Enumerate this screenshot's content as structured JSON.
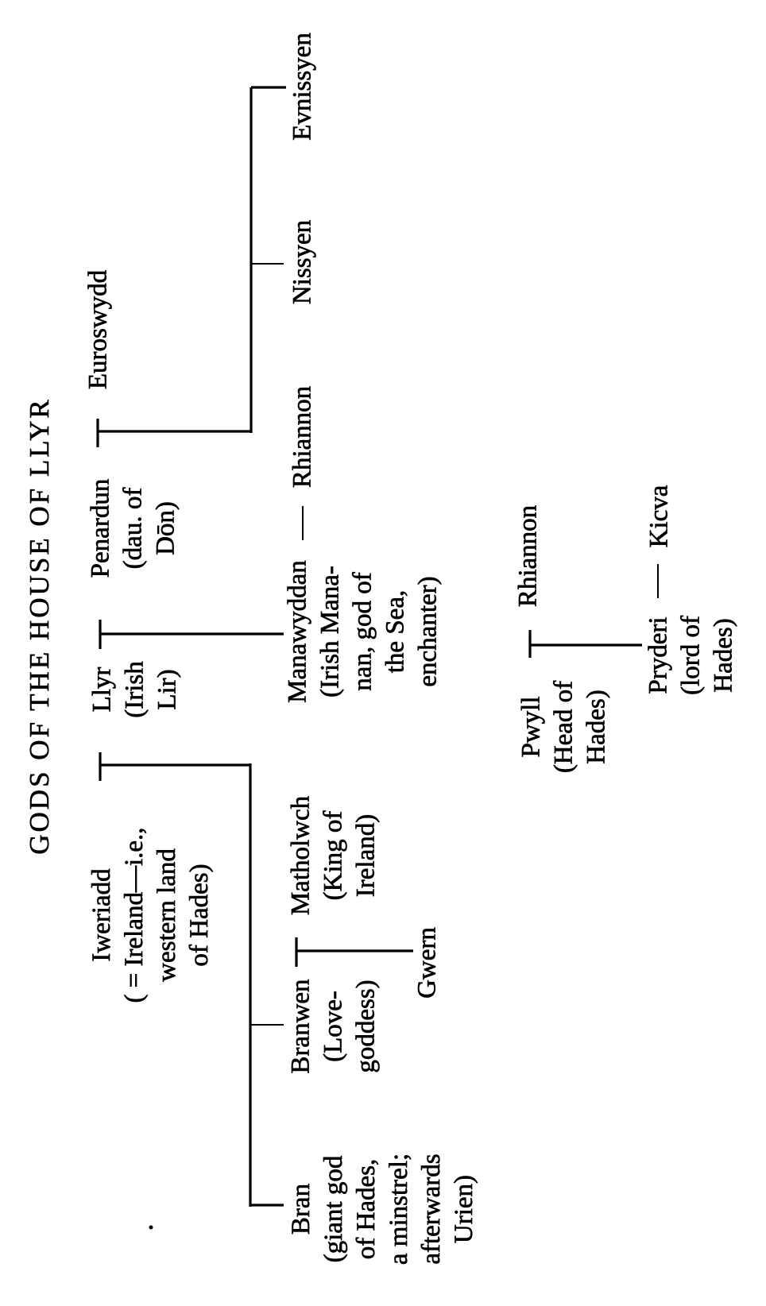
{
  "title": "GODS OF THE HOUSE OF LLYR",
  "people": {
    "euroswydd": [
      "Euroswydd"
    ],
    "penardun": [
      "Penardun",
      "(dau. of",
      "Dōn)"
    ],
    "llyr": [
      "Llyr",
      "(Irish",
      "Lir)"
    ],
    "iweriadd": [
      "Iweriadd",
      "( = Ireland—i.e.,",
      "western land",
      "of Hades)"
    ],
    "evnissyen": [
      "Evnissyen"
    ],
    "nissyen": [
      "Nissyen"
    ],
    "rhiannon_1": [
      "Rhiannon"
    ],
    "manawyddan": [
      "Manawyddan",
      "(Irish Mana-",
      "nan, god of",
      "the Sea,",
      "enchanter)"
    ],
    "matholwch": [
      "Matholwch",
      "(King of",
      "Ireland)"
    ],
    "branwen": [
      "Branwen",
      "(Love-",
      "goddess)"
    ],
    "gwern": [
      "Gwern"
    ],
    "bran": [
      "Bran",
      "(giant god",
      "of Hades,",
      "a minstrel;",
      "afterwards",
      "Urien)"
    ],
    "pwyll": [
      "Pwyll",
      "(Head of",
      "Hades)"
    ],
    "rhiannon_2": [
      "Rhiannon"
    ],
    "pryderi": [
      "Pryderi",
      "(lord of",
      "Hades)"
    ],
    "kicva": [
      "Kicva"
    ]
  }
}
